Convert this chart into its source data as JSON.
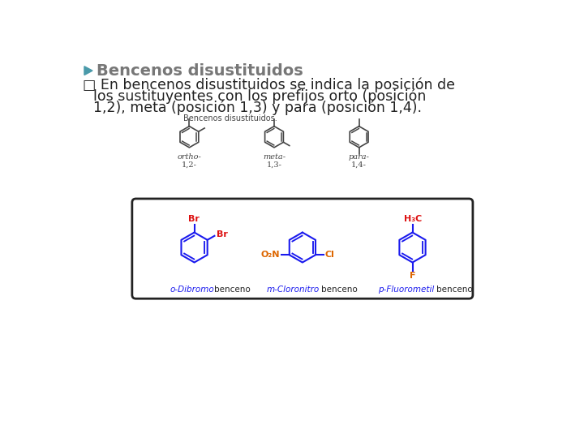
{
  "bg_color": "#ffffff",
  "title": "Bencenos disustituidos",
  "title_color": "#777777",
  "arrow_color": "#4a9aaa",
  "bullet_line1": "□ En bencenos disustituidos se indica la posición de",
  "bullet_line2": "los sustituyentes con los prefijos orto (posición",
  "bullet_line3": "1,2), meta (posición 1,3) y para (posición 1,4).",
  "diagram_label": "Bencenos disustituidos.",
  "ortho_label": "ortho-",
  "meta_label": "meta-",
  "para_label": "para-",
  "ortho_pos": "1,2-",
  "meta_pos": "1,3-",
  "para_pos": "1,4-",
  "blue": "#1a1aee",
  "red": "#dd1111",
  "orange": "#dd6600",
  "dark": "#222222",
  "gray": "#444444",
  "name1_colored": "o-Dibromo",
  "name1_plain": "benceno",
  "name2_colored": "m-Cloronitro",
  "name2_plain": "benceno",
  "name3_colored": "p-Fluorometil",
  "name3_plain": "benceno"
}
